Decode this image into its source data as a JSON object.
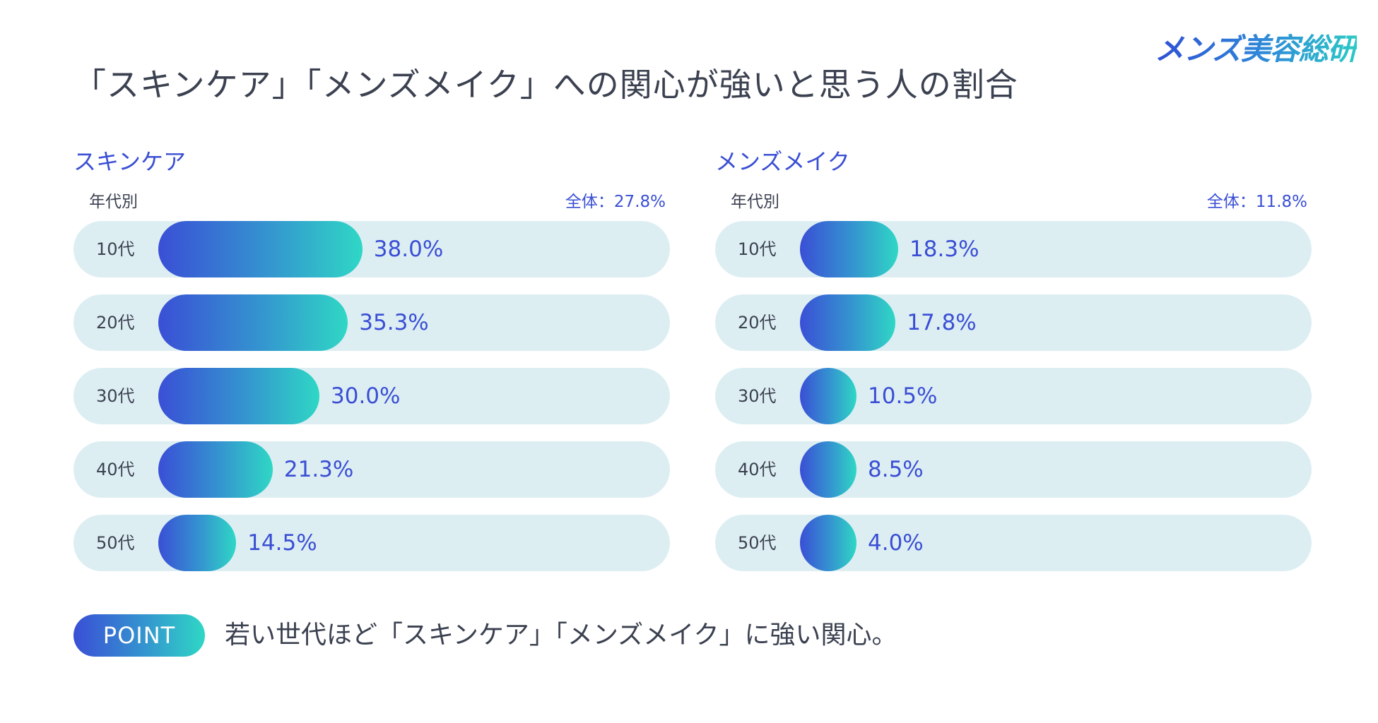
{
  "brand": {
    "logo_text": "メンズ美容総研",
    "accent": "#3a4fd4",
    "gradient_start": "#3a4fd6",
    "gradient_end": "#2fd7c5",
    "track": "#ddeef3"
  },
  "title": "「スキンケア」「メンズメイク」への関心が強いと思う人の割合",
  "chart_data": [
    {
      "type": "bar",
      "orientation": "horizontal",
      "title": "スキンケア",
      "subtitle_left": "年代別",
      "overall_label": "全体：27.8%",
      "overall": 27.8,
      "categories": [
        "10代",
        "20代",
        "30代",
        "40代",
        "50代"
      ],
      "values": [
        38.0,
        35.3,
        30.0,
        21.3,
        14.5
      ],
      "value_labels": [
        "38.0%",
        "35.3%",
        "30.0%",
        "21.3%",
        "14.5%"
      ],
      "xlim": [
        0,
        100
      ],
      "unit": "%"
    },
    {
      "type": "bar",
      "orientation": "horizontal",
      "title": "メンズメイク",
      "subtitle_left": "年代別",
      "overall_label": "全体：11.8%",
      "overall": 11.8,
      "categories": [
        "10代",
        "20代",
        "30代",
        "40代",
        "50代"
      ],
      "values": [
        18.3,
        17.8,
        10.5,
        8.5,
        4.0
      ],
      "value_labels": [
        "18.3%",
        "17.8%",
        "10.5%",
        "8.5%",
        "4.0%"
      ],
      "xlim": [
        0,
        100
      ],
      "unit": "%"
    }
  ],
  "point": {
    "badge": "POINT",
    "text": "若い世代ほど「スキンケア」「メンズメイク」に強い関心。"
  }
}
